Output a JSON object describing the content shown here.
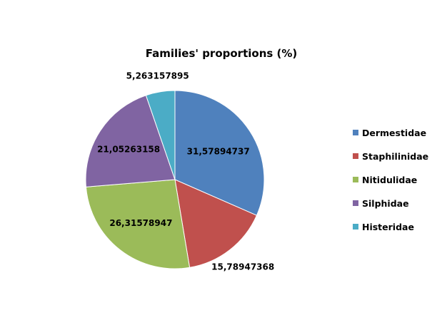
{
  "chart_data": {
    "type": "pie",
    "title": "Families' proportions (%)",
    "categories": [
      "Dermestidae",
      "Staphilinidae",
      "Nitidulidae",
      "Silphidae",
      "Histeridae"
    ],
    "values": [
      31.57894737,
      15.78947368,
      26.31578947,
      21.05263158,
      5.263157895
    ],
    "value_labels": [
      "31,57894737",
      "15,78947368",
      "26,31578947",
      "21,05263158",
      "5,263157895"
    ],
    "colors": [
      "#4F81BD",
      "#C0504D",
      "#9BBB59",
      "#8064A2",
      "#4BACC6"
    ],
    "start_angle": "12 o'clock",
    "direction": "clockwise",
    "legend_position": "right"
  }
}
